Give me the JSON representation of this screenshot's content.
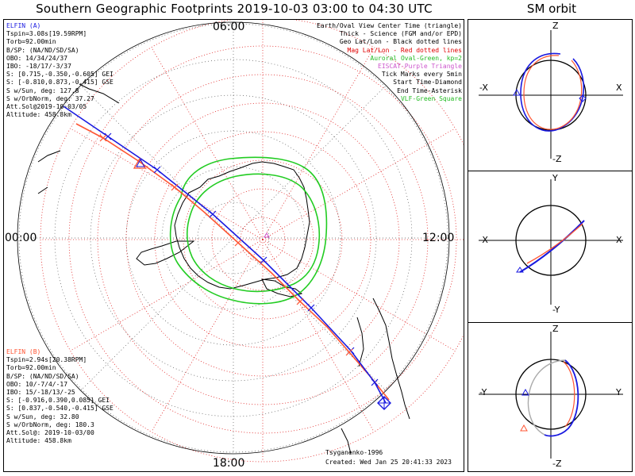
{
  "title": "Southern Geographic Footprints 2019-10-03 03:00 to 04:30 UTC",
  "sm_title": "SM orbit",
  "hour_labels": {
    "top": "06:00",
    "left": "00:00",
    "right": "12:00",
    "bottom": "18:00"
  },
  "elfin_a": {
    "name": "ELFIN (A)",
    "color": "#1a1ae0",
    "lines": [
      "Tspin=3.08s[19.59RPM]",
      "Torb=92.00min",
      "B/SP: (NA/ND/SD/SA)",
      "OBO: 14/34/24/37",
      "IBO: -18/17/-3/37",
      "S: [0.715,-0.350,-0.605] GEI",
      "S: [-0.810,0.873,-0.415] GSE",
      "S w/Sun, deg: 127.8",
      "S w/OrbNorm, deg: 37.27",
      "Att.Sol@2019-10-03/05",
      "Altitude: 458.8km"
    ]
  },
  "elfin_b": {
    "name": "ELFIN (B)",
    "color": "#ff5533",
    "lines": [
      "Tspin=2.94s[20.38RPM]",
      "Torb=92.00min",
      "B/SP: (NA/ND/SD/SA)",
      "OBO: 10/-7/4/-17",
      "IBO: 15/-18/13/-25",
      "S: [-0.916,0.390,0.085] GEI",
      "S: [0.837,-0.540,-0.415] GSE",
      "S w/Sun, deg: 32.80",
      "S w/OrbNorm, deg: 180.3",
      "Att.Sol@: 2019-10-03/00",
      "Altitude: 458.8km"
    ]
  },
  "legend": [
    {
      "text": "Earth/Oval View Center Time (triangle)",
      "color": "#000000"
    },
    {
      "text": "Thick - Science (FGM and/or EPD)",
      "color": "#000000"
    },
    {
      "text": "Geo Lat/Lon - Black dotted lines",
      "color": "#000000"
    },
    {
      "text": "Mag Lat/Lon - Red dotted lines",
      "color": "#e00000"
    },
    {
      "text": "Auroral Oval-Green, kp=2",
      "color": "#22bb22"
    },
    {
      "text": "EISCAT-Purple Triangle",
      "color": "#cc55cc"
    },
    {
      "text": "Tick Marks every 5min",
      "color": "#000000"
    },
    {
      "text": "Start Time-Diamond",
      "color": "#000000"
    },
    {
      "text": "End Time-Asterisk",
      "color": "#000000"
    },
    {
      "text": "VLF-Green Square",
      "color": "#22bb22"
    }
  ],
  "footer": {
    "model": "Tsyganenko-1996",
    "created": "Created: Wed Jan 25 20:41:33 2023"
  },
  "sm_panels": [
    {
      "top": "Z",
      "bottom": "-Z",
      "left": "-X",
      "right": "X"
    },
    {
      "top": "Y",
      "bottom": "-Y",
      "left": "-X",
      "right": "X"
    },
    {
      "top": "Z",
      "bottom": "-Z",
      "left": "-Y",
      "right": "Y"
    }
  ]
}
